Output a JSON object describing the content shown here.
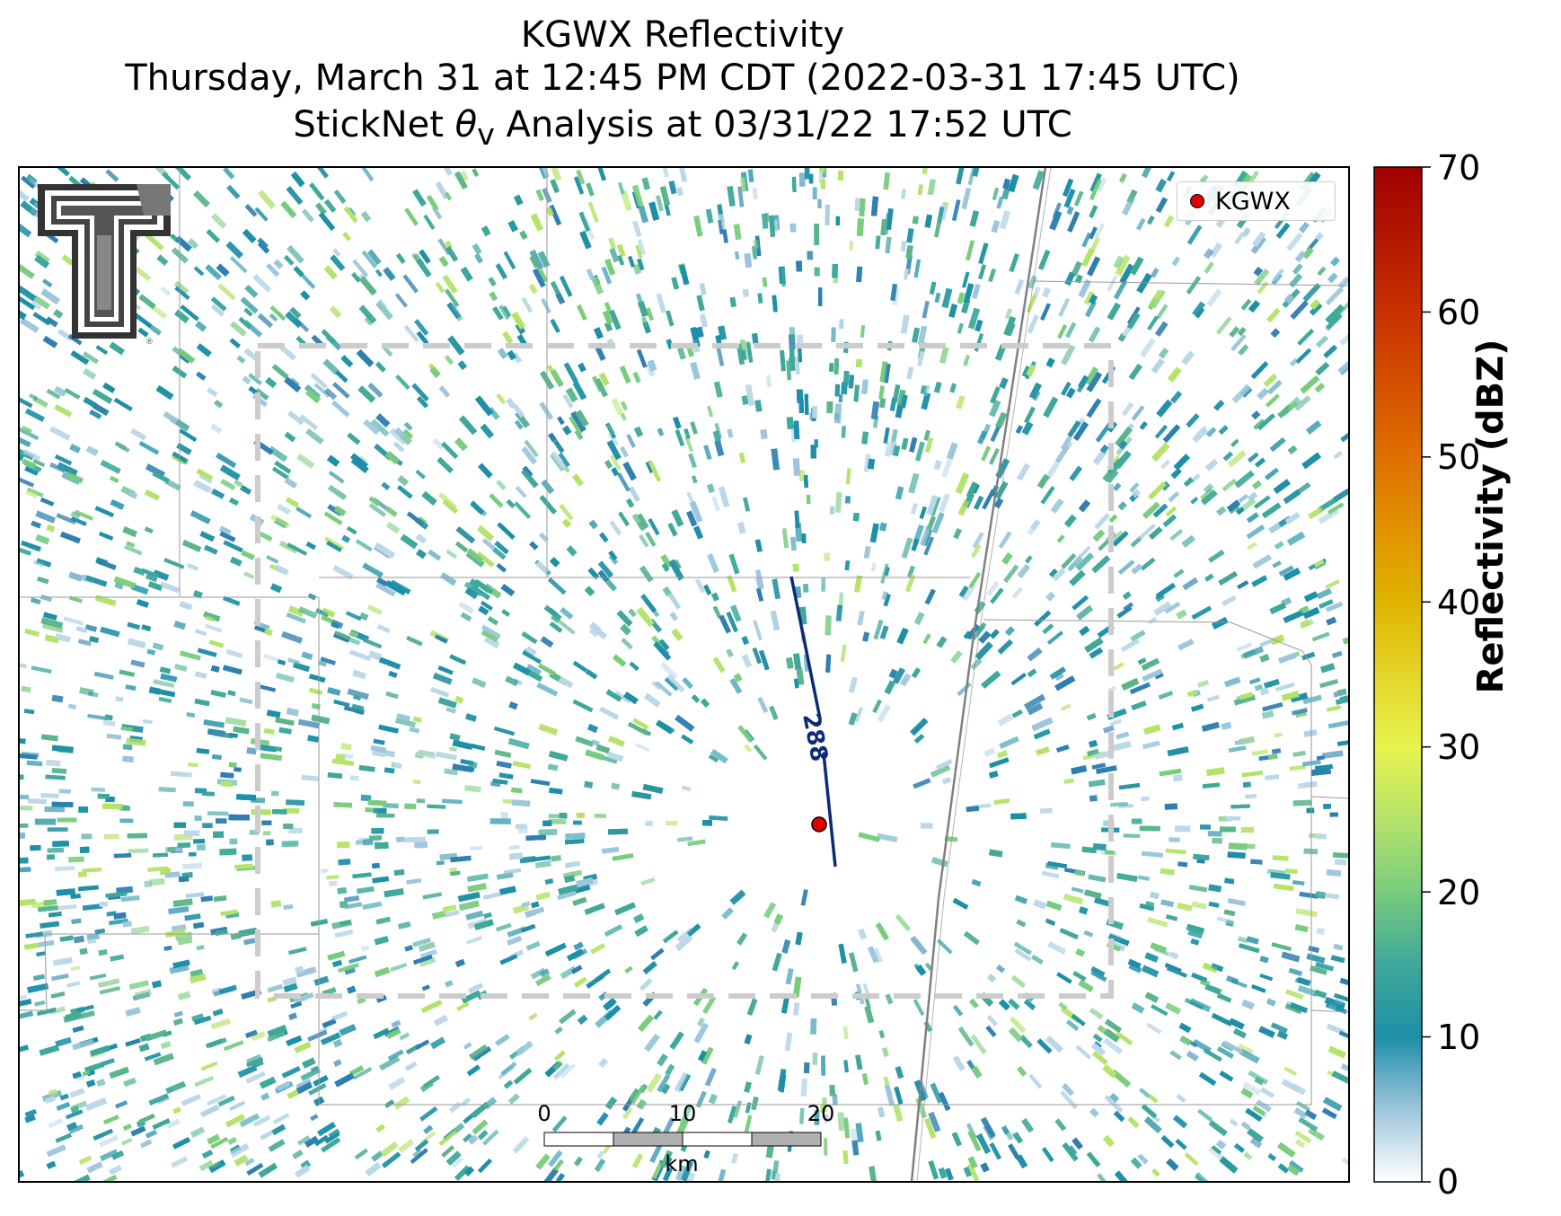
{
  "header": {
    "title": "KGWX Reflectivity",
    "subtitle": "Thursday, March 31 at 12:45 PM CDT (2022-03-31 17:45 UTC)",
    "analysis_prefix": "StickNet ",
    "analysis_symbol": "θ",
    "analysis_subscript": "v",
    "analysis_suffix": " Analysis at 03/31/22 17:52 UTC"
  },
  "legend": {
    "label": "KGWX",
    "marker_color": "#e00000"
  },
  "highway": {
    "label": "288",
    "color": "#0d2a78"
  },
  "colorbar": {
    "label": "Reflectivity (dBZ)",
    "ticks": [
      "70",
      "60",
      "50",
      "40",
      "30",
      "20",
      "10",
      "0"
    ],
    "min": 0,
    "max": 70,
    "stops": [
      {
        "value": 0,
        "color": "#ffffff"
      },
      {
        "value": 5,
        "color": "#9dc6dc"
      },
      {
        "value": 10,
        "color": "#1e8fa8"
      },
      {
        "value": 15,
        "color": "#3fa89a"
      },
      {
        "value": 20,
        "color": "#79cc7d"
      },
      {
        "value": 25,
        "color": "#b5e36a"
      },
      {
        "value": 30,
        "color": "#e8f44f"
      },
      {
        "value": 40,
        "color": "#e0b400"
      },
      {
        "value": 50,
        "color": "#e07000"
      },
      {
        "value": 60,
        "color": "#c83000"
      },
      {
        "value": 70,
        "color": "#a00000"
      }
    ]
  },
  "scalebar": {
    "ticks": [
      "0",
      "10",
      "20"
    ],
    "unit": "km"
  },
  "logo": {
    "name": "texas-tech-double-t-logo"
  },
  "colors": {
    "analysis_box": "#cccccc",
    "county_lines": "#9a9a9a",
    "state_line": "#808080",
    "radar_site": "#e00000"
  }
}
